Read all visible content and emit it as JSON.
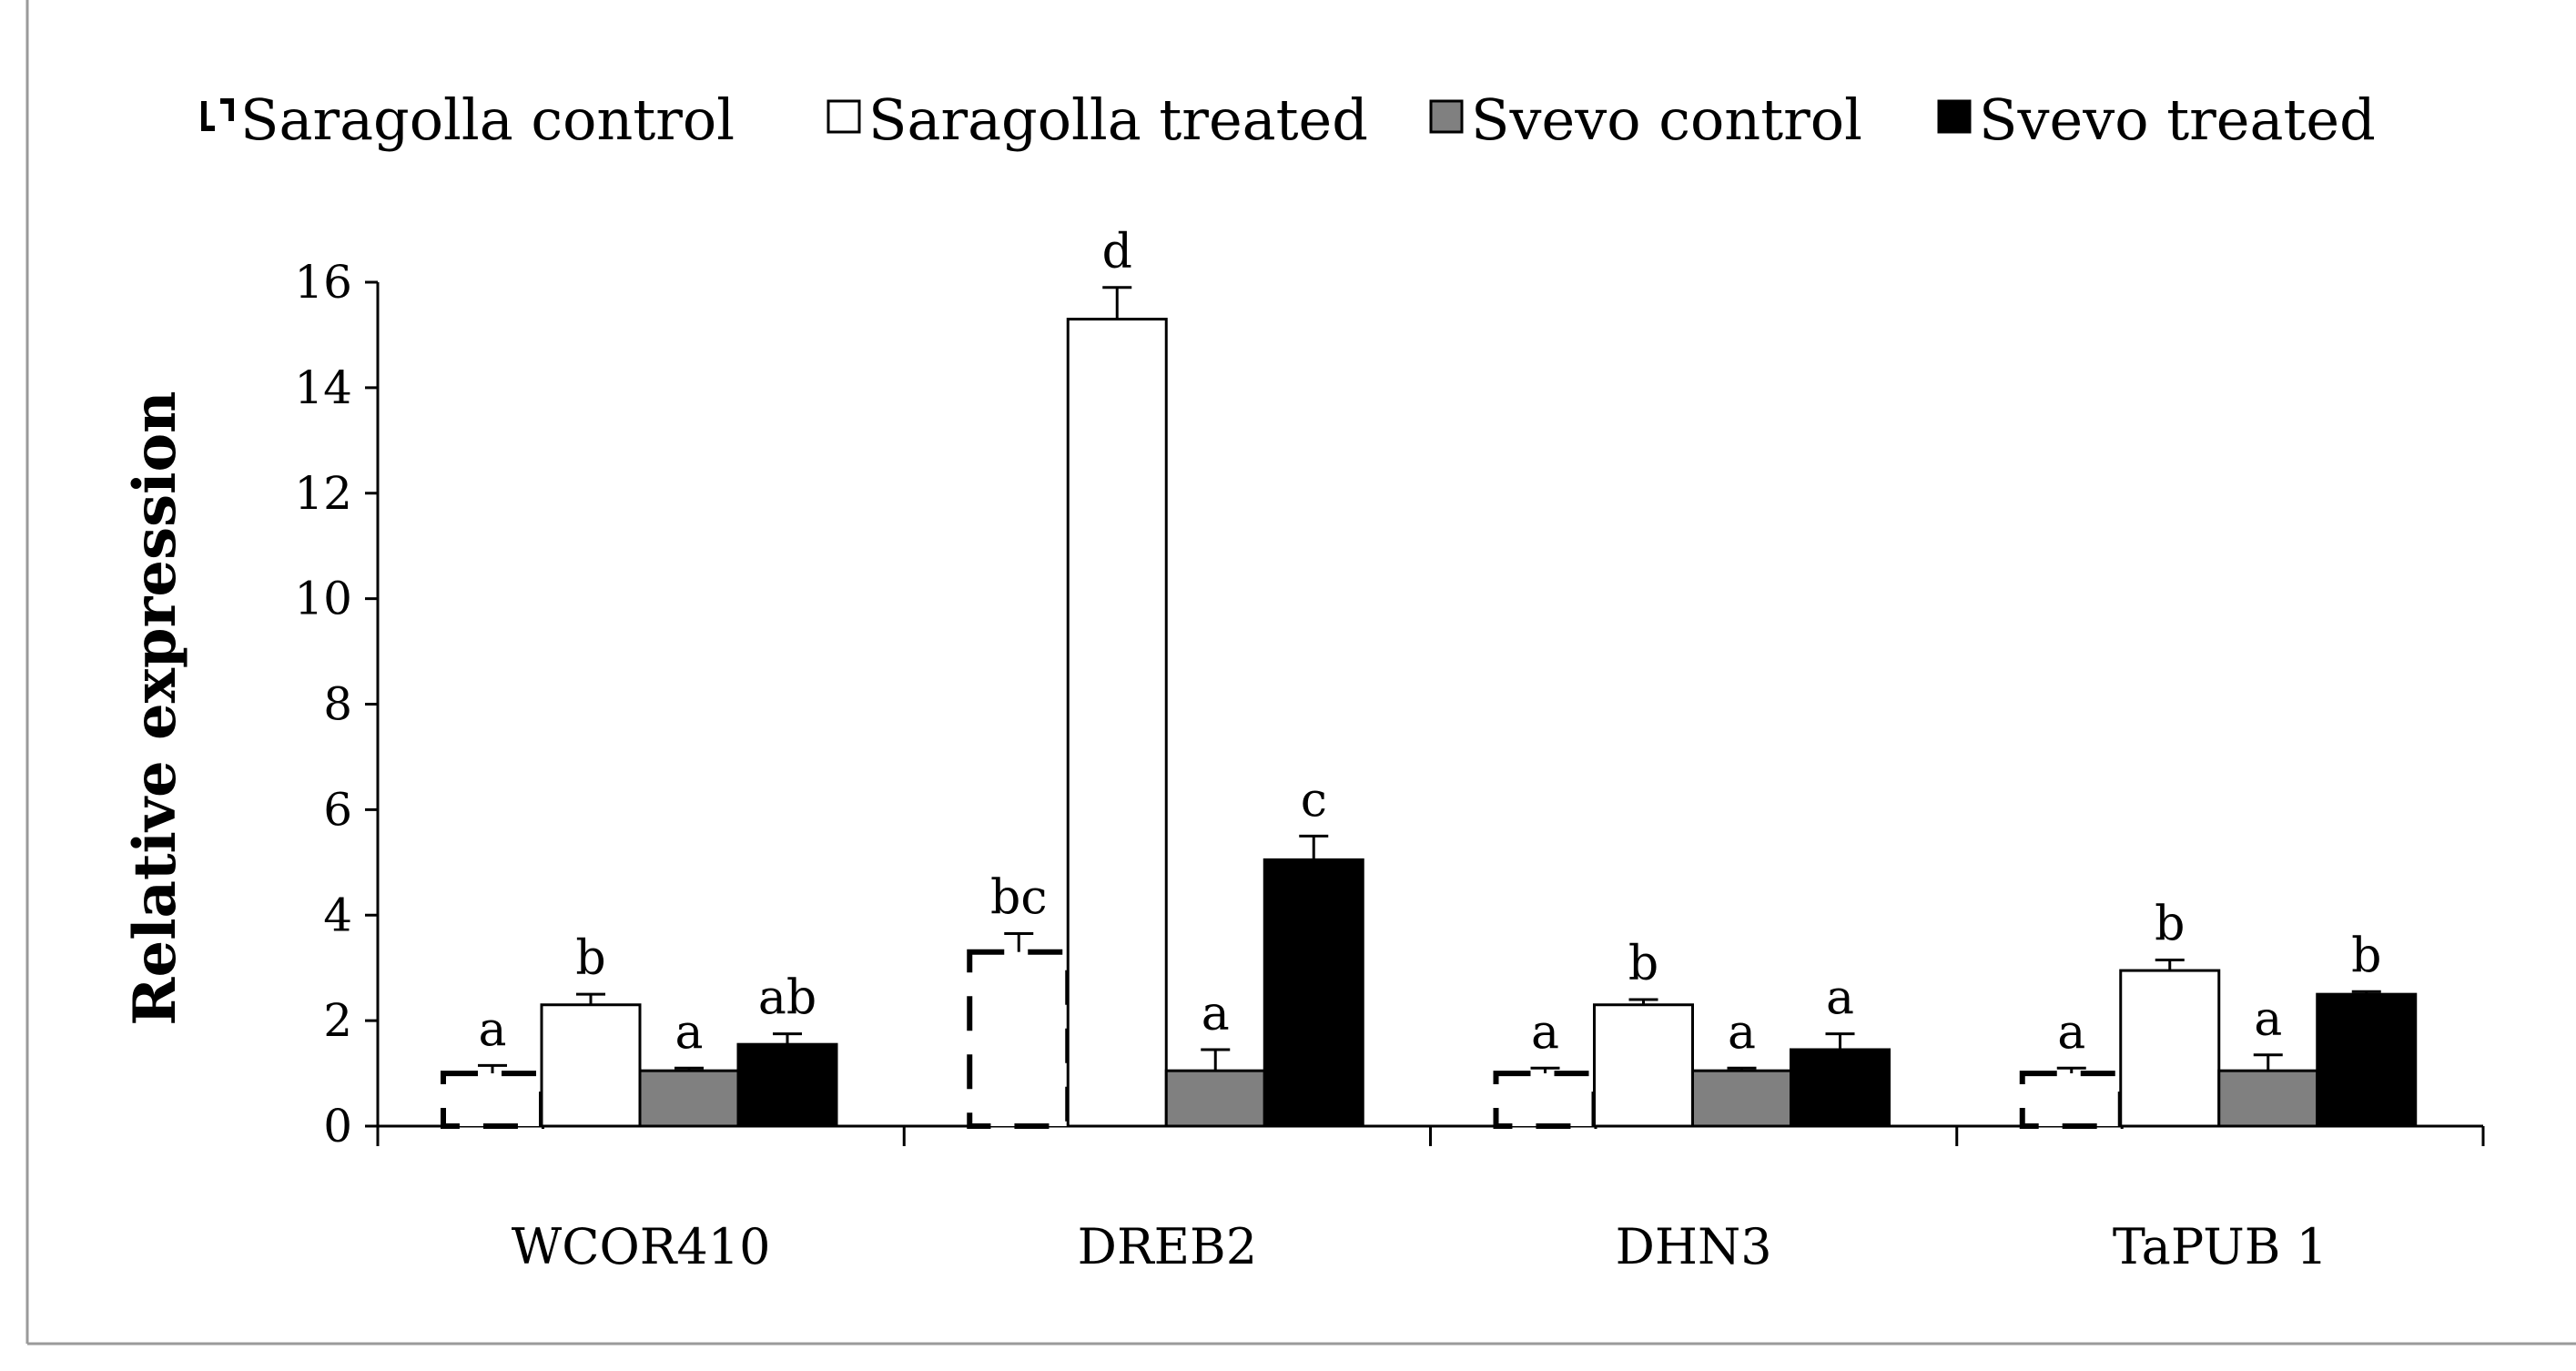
{
  "chart_data": {
    "type": "bar",
    "title": "",
    "xlabel": "",
    "ylabel": "Relative expression",
    "ylim": [
      0,
      16
    ],
    "yticks": [
      "0",
      "2",
      "4",
      "6",
      "8",
      "10",
      "12",
      "14",
      "16"
    ],
    "categories": [
      "WCOR410",
      "DREB2",
      "DHN3",
      "TaPUB 1"
    ],
    "legend_position": "top",
    "series": [
      {
        "name": "Saragolla control",
        "style": "dashed-outline",
        "color": "#ffffff",
        "values": [
          1.0,
          3.3,
          1.0,
          1.0
        ],
        "errors": [
          0.15,
          0.35,
          0.1,
          0.1
        ],
        "letters": [
          "a",
          "bc",
          "a",
          "a"
        ]
      },
      {
        "name": "Saragolla treated",
        "style": "outline",
        "color": "#ffffff",
        "values": [
          2.3,
          15.3,
          2.3,
          2.95
        ],
        "errors": [
          0.2,
          0.6,
          0.1,
          0.2
        ],
        "letters": [
          "b",
          "d",
          "b",
          "b"
        ]
      },
      {
        "name": "Svevo control",
        "style": "filled",
        "color": "#808080",
        "values": [
          1.05,
          1.05,
          1.05,
          1.05
        ],
        "errors": [
          0.05,
          0.4,
          0.05,
          0.3
        ],
        "letters": [
          "a",
          "a",
          "a",
          "a"
        ]
      },
      {
        "name": "Svevo treated",
        "style": "filled",
        "color": "#000000",
        "values": [
          1.55,
          5.05,
          1.45,
          2.5
        ],
        "errors": [
          0.2,
          0.45,
          0.3,
          0.05
        ],
        "letters": [
          "ab",
          "c",
          "a",
          "b"
        ]
      }
    ]
  }
}
